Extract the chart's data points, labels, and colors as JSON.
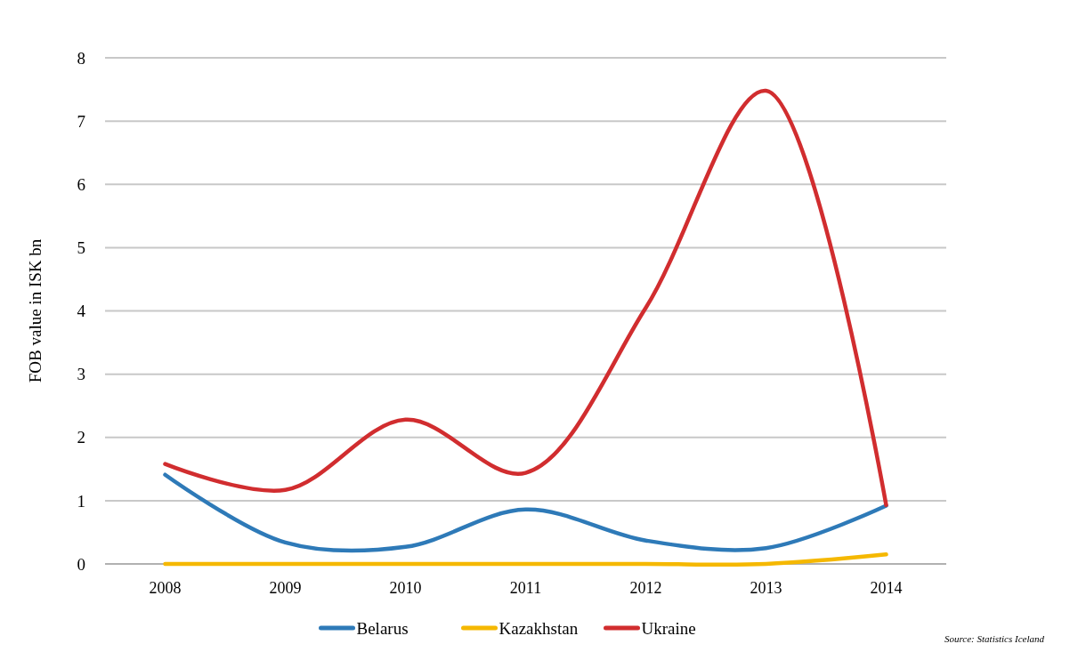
{
  "chart_data": {
    "type": "line",
    "ylabel": "FOB value in ISK bn",
    "categories": [
      "2008",
      "2009",
      "2010",
      "2011",
      "2012",
      "2013",
      "2014"
    ],
    "series": [
      {
        "name": "Belarus",
        "color": "#2e7ab8",
        "values": [
          1.41,
          0.34,
          0.27,
          0.86,
          0.37,
          0.25,
          0.92
        ]
      },
      {
        "name": "Kazakhstan",
        "color": "#f5b800",
        "values": [
          0,
          0,
          0,
          0,
          0,
          0,
          0.15
        ]
      },
      {
        "name": "Ukraine",
        "color": "#d12d2f",
        "values": [
          1.58,
          1.17,
          2.28,
          1.44,
          4.05,
          7.48,
          0.93
        ]
      }
    ],
    "ylim": [
      0,
      8
    ],
    "yticks": [
      0,
      1,
      2,
      3,
      4,
      5,
      6,
      7,
      8
    ],
    "grid": "y",
    "legend": "bottom",
    "marker": "none",
    "line_style": "solid",
    "annotations": [
      "Source: Statistics Iceland"
    ]
  }
}
